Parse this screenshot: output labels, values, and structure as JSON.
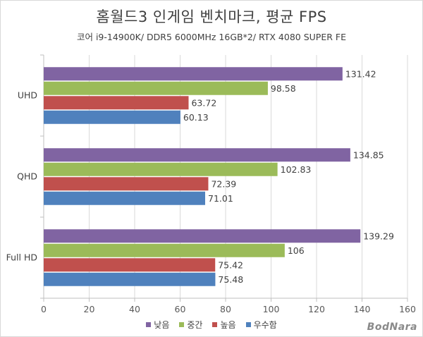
{
  "chart_data": {
    "type": "bar",
    "orientation": "horizontal",
    "title": "홈월드3 인게임 벤치마크, 평균 FPS",
    "subtitle": "코어 i9-14900K/ DDR5 6000MHz 16GB*2/ RTX 4080 SUPER FE",
    "categories": [
      "UHD",
      "QHD",
      "Full HD"
    ],
    "series": [
      {
        "name": "낮음",
        "color": "#8064a2",
        "values": [
          131.42,
          134.85,
          139.29
        ],
        "labels": [
          "131.42",
          "134.85",
          "139.29"
        ]
      },
      {
        "name": "중간",
        "color": "#9bbb59",
        "values": [
          98.58,
          102.83,
          106
        ],
        "labels": [
          "98.58",
          "102.83",
          "106"
        ]
      },
      {
        "name": "높음",
        "color": "#c0504d",
        "values": [
          63.72,
          72.39,
          75.42
        ],
        "labels": [
          "63.72",
          "72.39",
          "75.42"
        ]
      },
      {
        "name": "우수함",
        "color": "#4f81bd",
        "values": [
          60.13,
          71.01,
          75.48
        ],
        "labels": [
          "60.13",
          "71.01",
          "75.48"
        ]
      }
    ],
    "xlim": [
      0,
      160
    ],
    "xticks": [
      "0",
      "20",
      "40",
      "60",
      "80",
      "100",
      "120",
      "140",
      "160"
    ],
    "grid": true,
    "legend_position": "bottom"
  },
  "watermark": "BodNara"
}
